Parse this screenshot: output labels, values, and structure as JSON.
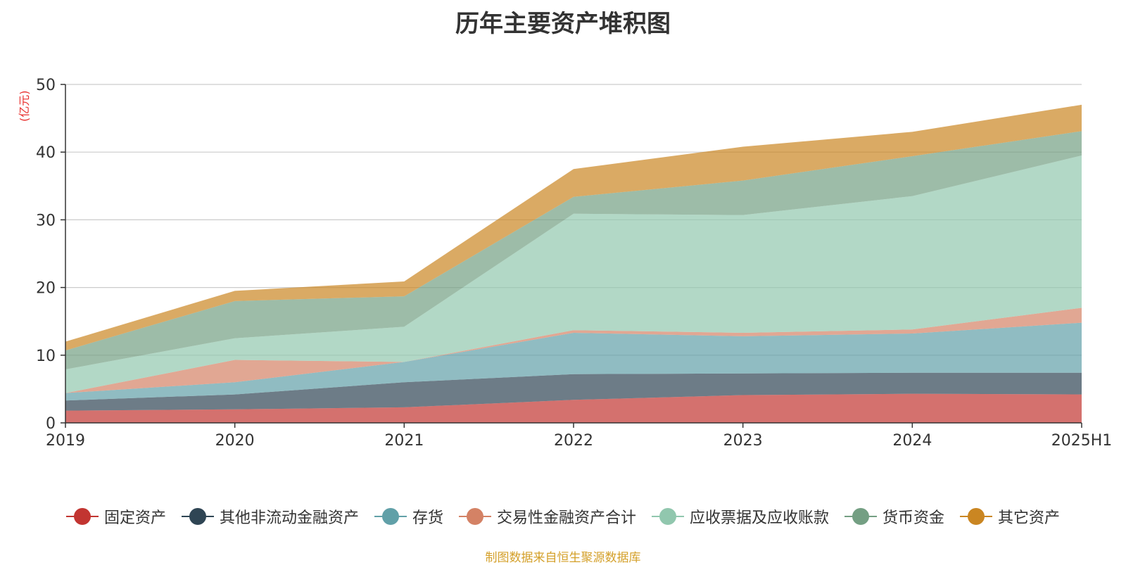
{
  "chart_data": {
    "type": "area",
    "stacked": true,
    "title": "历年主要资产堆积图",
    "unit_label": "(亿元)",
    "categories": [
      "2019",
      "2020",
      "2021",
      "2022",
      "2023",
      "2024",
      "2025H1"
    ],
    "ylim": [
      0,
      50
    ],
    "yticks": [
      0,
      10,
      20,
      30,
      40,
      50
    ],
    "grid": true,
    "legend_position": "bottom",
    "series": [
      {
        "name": "固定资产",
        "color": "#c23531",
        "values": [
          1.8,
          2.0,
          2.3,
          3.4,
          4.1,
          4.3,
          4.2
        ]
      },
      {
        "name": "其他非流动金融资产",
        "color": "#2f4554",
        "values": [
          1.5,
          2.2,
          3.7,
          3.8,
          3.2,
          3.1,
          3.2
        ]
      },
      {
        "name": "存货",
        "color": "#61a0a8",
        "values": [
          1.1,
          1.8,
          3.0,
          6.1,
          5.5,
          5.8,
          7.4
        ]
      },
      {
        "name": "交易性金融资产合计",
        "color": "#d48265",
        "values": [
          0.0,
          3.3,
          0.0,
          0.4,
          0.5,
          0.6,
          2.2
        ]
      },
      {
        "name": "应收票据及应收账款",
        "color": "#91c7ae",
        "values": [
          3.5,
          3.2,
          5.2,
          17.2,
          17.4,
          19.7,
          22.5
        ]
      },
      {
        "name": "货币资金",
        "color": "#749f83",
        "values": [
          2.8,
          5.5,
          4.5,
          2.5,
          5.1,
          5.9,
          3.6
        ]
      },
      {
        "name": "其它资产",
        "color": "#ca8622",
        "values": [
          1.3,
          1.5,
          2.2,
          4.1,
          5.0,
          3.6,
          3.9
        ]
      }
    ]
  },
  "footer": {
    "source": "制图数据来自恒生聚源数据库"
  }
}
